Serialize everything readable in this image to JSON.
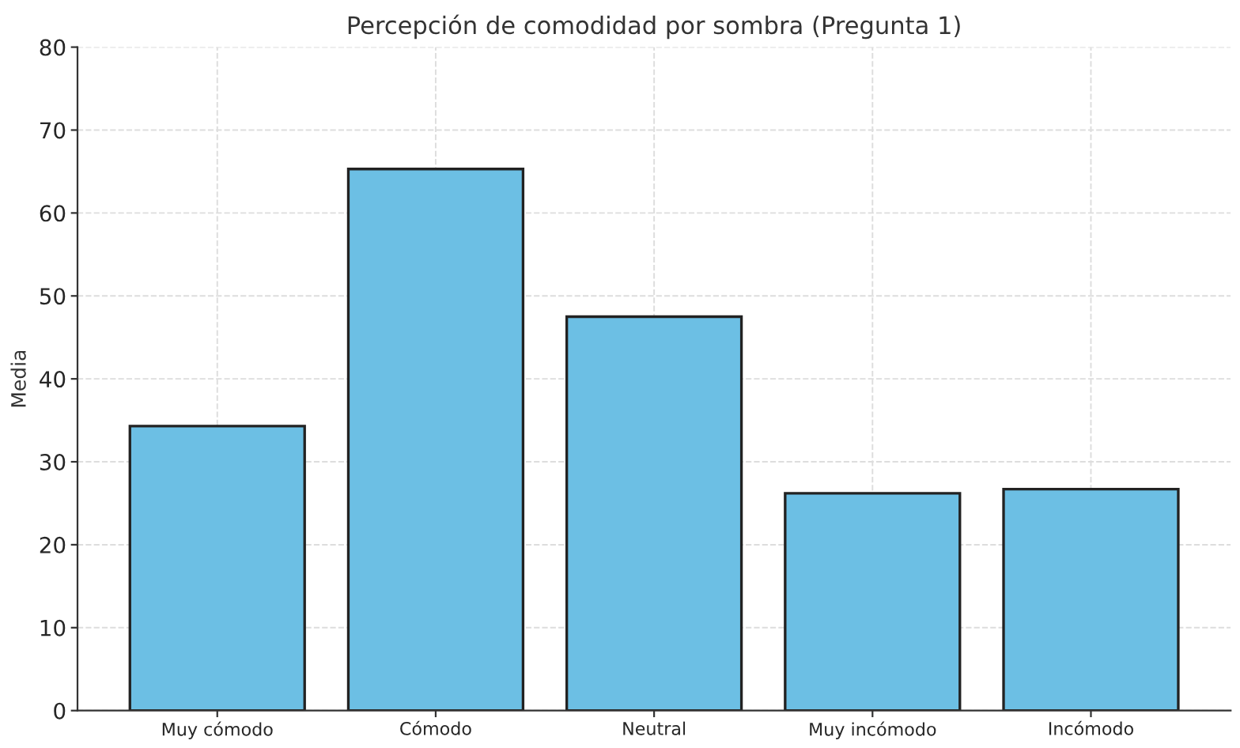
{
  "chart_data": {
    "type": "bar",
    "title": "Percepción de comodidad por sombra (Pregunta 1)",
    "ylabel": "Media",
    "categories": [
      "Muy cómodo",
      "Cómodo",
      "Neutral",
      "Muy incómodo",
      "Incómodo"
    ],
    "values": [
      34.3,
      65.3,
      47.5,
      26.2,
      26.7
    ],
    "color": "#6cbfe4",
    "ylim": [
      0,
      80
    ],
    "yticks": [
      0,
      10,
      20,
      30,
      40,
      50,
      60,
      70,
      80
    ],
    "grid": true
  }
}
